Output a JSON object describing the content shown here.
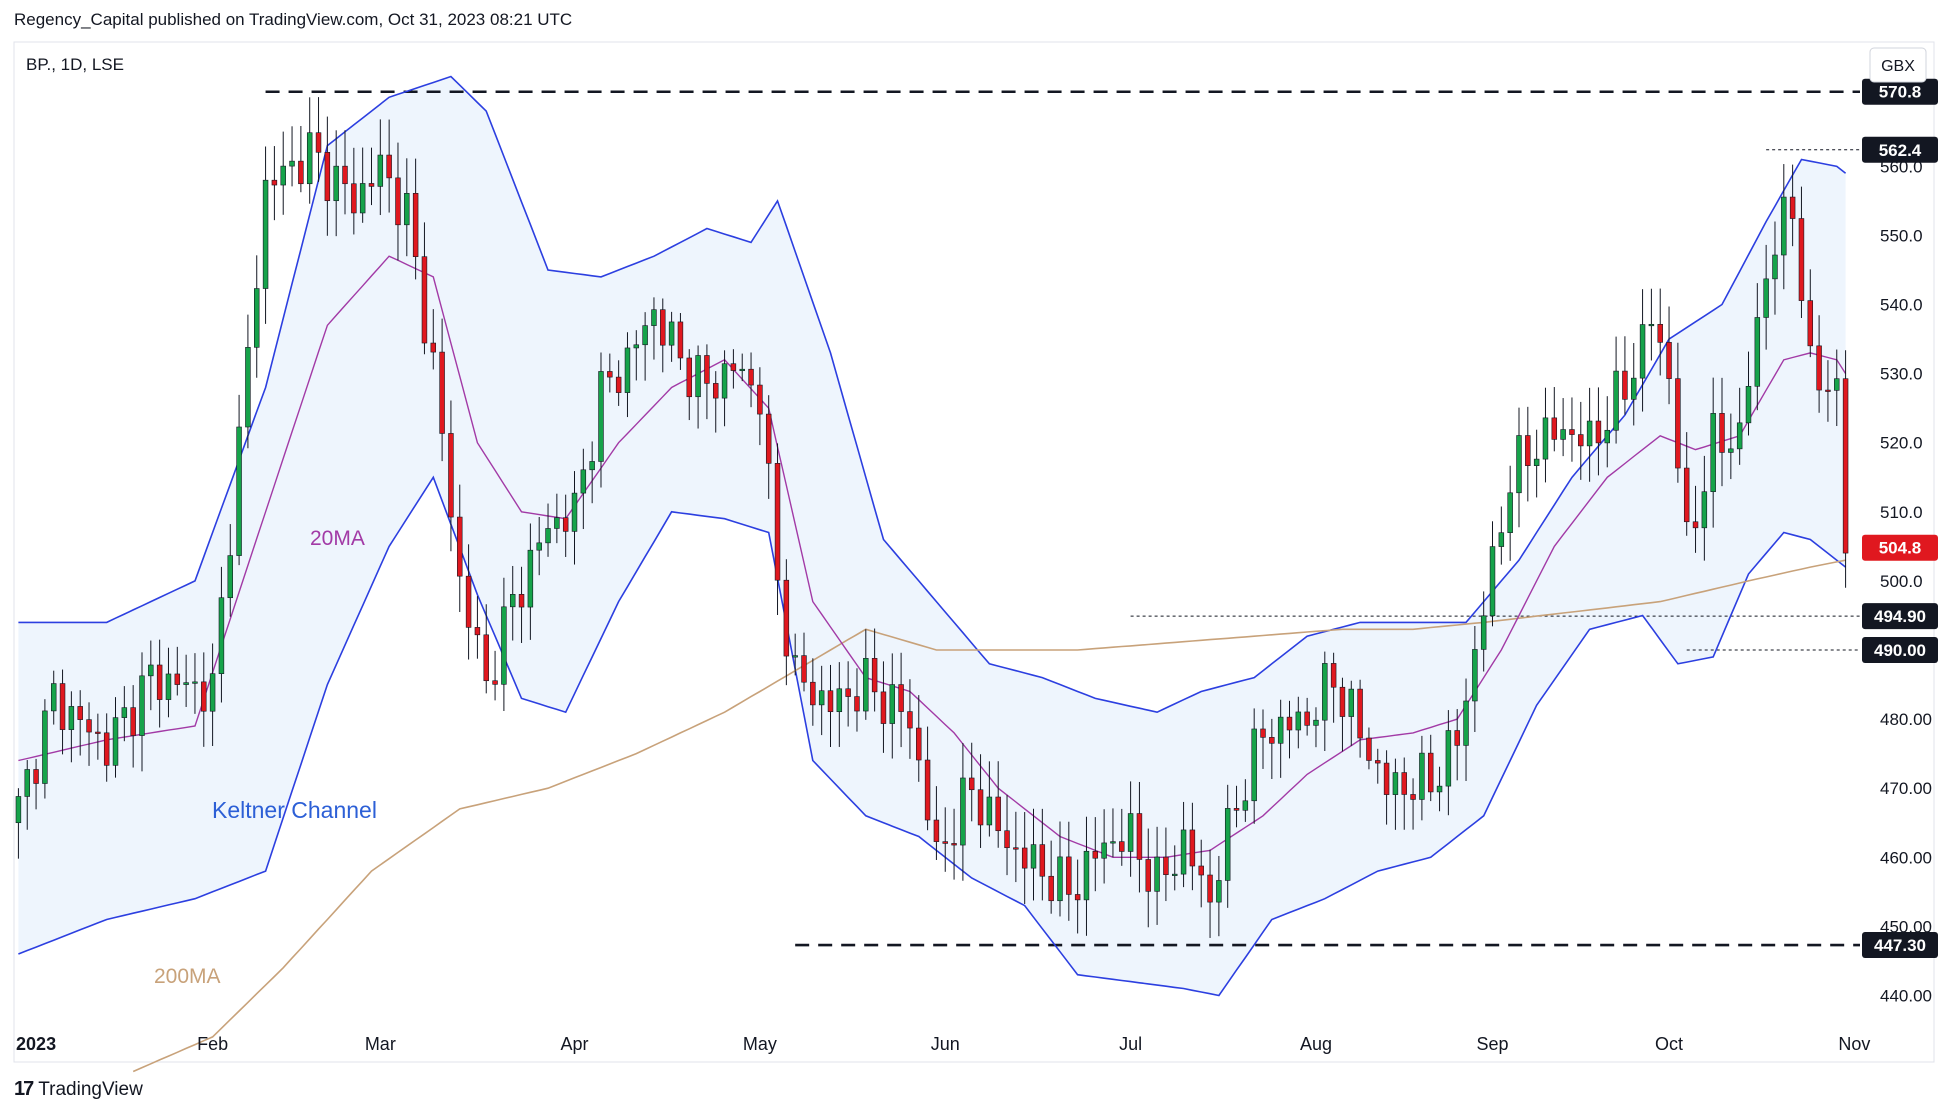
{
  "header": {
    "credit": "Regency_Capital published on TradingView.com, Oct 31, 2023 08:21 UTC"
  },
  "footer": {
    "brand": "TradingView",
    "mark": "17"
  },
  "chart_data": {
    "type": "candlestick",
    "title": "BP., 1D, LSE",
    "currency": "GBX",
    "y_range": [
      435,
      578
    ],
    "y_ticks": [
      "440.00",
      "450.00",
      "460.00",
      "470.00",
      "480.00",
      "490.00",
      "500.0",
      "510.0",
      "520.0",
      "530.0",
      "540.0",
      "550.0",
      "560.0"
    ],
    "x_labels": [
      "2023",
      "Feb",
      "Mar",
      "Apr",
      "May",
      "Jun",
      "Jul",
      "Aug",
      "Sep",
      "Oct",
      "Nov"
    ],
    "x_label_index": [
      2,
      22,
      41,
      63,
      84,
      105,
      126,
      147,
      167,
      187,
      208
    ],
    "bar_count": 208,
    "annotations": [
      "20MA",
      "Keltner Channel",
      "200MA"
    ],
    "price_labels": [
      {
        "value": 570.8,
        "text": "570.8",
        "style": "dark",
        "line": "dashed-bold"
      },
      {
        "value": 562.4,
        "text": "562.4",
        "style": "dark",
        "line": "dotted"
      },
      {
        "value": 504.8,
        "text": "504.8",
        "style": "red",
        "line": "none"
      },
      {
        "value": 494.9,
        "text": "494.90",
        "style": "dark",
        "line": "dotted"
      },
      {
        "value": 490.0,
        "text": "490.00",
        "style": "dark",
        "line": "dotted"
      },
      {
        "value": 447.3,
        "text": "447.30",
        "style": "dark",
        "line": "dashed-bold"
      }
    ],
    "close_anchors": [
      [
        0,
        467
      ],
      [
        4,
        483
      ],
      [
        10,
        476
      ],
      [
        15,
        486
      ],
      [
        22,
        484
      ],
      [
        25,
        520
      ],
      [
        28,
        557
      ],
      [
        33,
        562
      ],
      [
        38,
        555
      ],
      [
        41,
        560
      ],
      [
        44,
        553
      ],
      [
        47,
        531
      ],
      [
        50,
        500
      ],
      [
        53,
        485
      ],
      [
        56,
        497
      ],
      [
        60,
        508
      ],
      [
        63,
        510
      ],
      [
        66,
        527
      ],
      [
        69,
        532
      ],
      [
        72,
        539
      ],
      [
        75,
        532
      ],
      [
        78,
        528
      ],
      [
        81,
        531
      ],
      [
        84,
        527
      ],
      [
        86,
        500
      ],
      [
        88,
        486
      ],
      [
        92,
        482
      ],
      [
        96,
        485
      ],
      [
        101,
        480
      ],
      [
        104,
        460
      ],
      [
        108,
        470
      ],
      [
        112,
        462
      ],
      [
        116,
        458
      ],
      [
        119,
        455
      ],
      [
        123,
        462
      ],
      [
        126,
        463
      ],
      [
        129,
        456
      ],
      [
        132,
        462
      ],
      [
        135,
        454
      ],
      [
        138,
        468
      ],
      [
        141,
        478
      ],
      [
        146,
        480
      ],
      [
        149,
        486
      ],
      [
        152,
        478
      ],
      [
        155,
        470
      ],
      [
        160,
        471
      ],
      [
        163,
        477
      ],
      [
        166,
        496
      ],
      [
        169,
        515
      ],
      [
        172,
        520
      ],
      [
        175,
        522
      ],
      [
        178,
        520
      ],
      [
        182,
        528
      ],
      [
        185,
        538
      ],
      [
        187,
        530
      ],
      [
        189,
        505
      ],
      [
        192,
        520
      ],
      [
        195,
        521
      ],
      [
        198,
        545
      ],
      [
        201,
        555
      ],
      [
        203,
        530
      ],
      [
        206,
        528
      ],
      [
        207,
        504.8
      ]
    ],
    "ma20_anchors": [
      [
        0,
        474
      ],
      [
        10,
        477
      ],
      [
        20,
        479
      ],
      [
        28,
        510
      ],
      [
        35,
        537
      ],
      [
        42,
        547
      ],
      [
        47,
        544
      ],
      [
        52,
        520
      ],
      [
        57,
        510
      ],
      [
        62,
        509
      ],
      [
        68,
        520
      ],
      [
        74,
        528
      ],
      [
        80,
        532
      ],
      [
        85,
        525
      ],
      [
        90,
        497
      ],
      [
        96,
        486
      ],
      [
        101,
        484
      ],
      [
        106,
        478
      ],
      [
        111,
        470
      ],
      [
        118,
        463
      ],
      [
        124,
        460
      ],
      [
        130,
        460
      ],
      [
        135,
        461
      ],
      [
        141,
        466
      ],
      [
        146,
        472
      ],
      [
        152,
        477
      ],
      [
        158,
        478
      ],
      [
        163,
        480
      ],
      [
        168,
        490
      ],
      [
        174,
        505
      ],
      [
        180,
        515
      ],
      [
        186,
        521
      ],
      [
        190,
        519
      ],
      [
        195,
        521
      ],
      [
        200,
        532
      ],
      [
        203,
        533
      ],
      [
        206,
        532
      ],
      [
        207,
        530
      ]
    ],
    "ma200_anchors": [
      [
        13,
        429
      ],
      [
        22,
        434
      ],
      [
        30,
        444
      ],
      [
        40,
        458
      ],
      [
        50,
        467
      ],
      [
        60,
        470
      ],
      [
        70,
        475
      ],
      [
        80,
        481
      ],
      [
        88,
        487
      ],
      [
        96,
        493
      ],
      [
        104,
        490
      ],
      [
        112,
        490
      ],
      [
        120,
        490
      ],
      [
        130,
        491
      ],
      [
        140,
        492
      ],
      [
        150,
        493
      ],
      [
        158,
        493
      ],
      [
        166,
        494
      ],
      [
        176,
        495.5
      ],
      [
        186,
        497
      ],
      [
        196,
        500
      ],
      [
        203,
        502
      ],
      [
        207,
        503
      ]
    ],
    "keltner_upper_anchors": [
      [
        0,
        494
      ],
      [
        10,
        494
      ],
      [
        20,
        500
      ],
      [
        28,
        528
      ],
      [
        35,
        563
      ],
      [
        42,
        570
      ],
      [
        49,
        573
      ],
      [
        53,
        568
      ],
      [
        60,
        545
      ],
      [
        66,
        544
      ],
      [
        72,
        547
      ],
      [
        78,
        551
      ],
      [
        83,
        549
      ],
      [
        86,
        555
      ],
      [
        92,
        533
      ],
      [
        98,
        506
      ],
      [
        104,
        497
      ],
      [
        110,
        488
      ],
      [
        116,
        486
      ],
      [
        122,
        483
      ],
      [
        129,
        481
      ],
      [
        134,
        484
      ],
      [
        140,
        486
      ],
      [
        146,
        492
      ],
      [
        152,
        494
      ],
      [
        158,
        494
      ],
      [
        164,
        494
      ],
      [
        170,
        503
      ],
      [
        176,
        515
      ],
      [
        182,
        524
      ],
      [
        187,
        535
      ],
      [
        193,
        540
      ],
      [
        198,
        552
      ],
      [
        202,
        561
      ],
      [
        206,
        560
      ],
      [
        207,
        559
      ]
    ],
    "keltner_lower_anchors": [
      [
        0,
        446
      ],
      [
        10,
        451
      ],
      [
        20,
        454
      ],
      [
        28,
        458
      ],
      [
        35,
        485
      ],
      [
        42,
        505
      ],
      [
        47,
        515
      ],
      [
        52,
        498
      ],
      [
        57,
        483
      ],
      [
        62,
        481
      ],
      [
        68,
        497
      ],
      [
        74,
        510
      ],
      [
        80,
        509
      ],
      [
        85,
        507
      ],
      [
        90,
        474
      ],
      [
        96,
        466
      ],
      [
        102,
        463
      ],
      [
        108,
        457
      ],
      [
        114,
        453
      ],
      [
        120,
        443
      ],
      [
        126,
        442
      ],
      [
        132,
        441
      ],
      [
        136,
        440
      ],
      [
        142,
        451
      ],
      [
        148,
        454
      ],
      [
        154,
        458
      ],
      [
        160,
        460
      ],
      [
        166,
        466
      ],
      [
        172,
        482
      ],
      [
        178,
        493
      ],
      [
        184,
        495
      ],
      [
        188,
        488
      ],
      [
        192,
        489
      ],
      [
        196,
        501
      ],
      [
        200,
        507
      ],
      [
        203,
        506
      ],
      [
        206,
        503
      ],
      [
        207,
        502
      ]
    ]
  }
}
